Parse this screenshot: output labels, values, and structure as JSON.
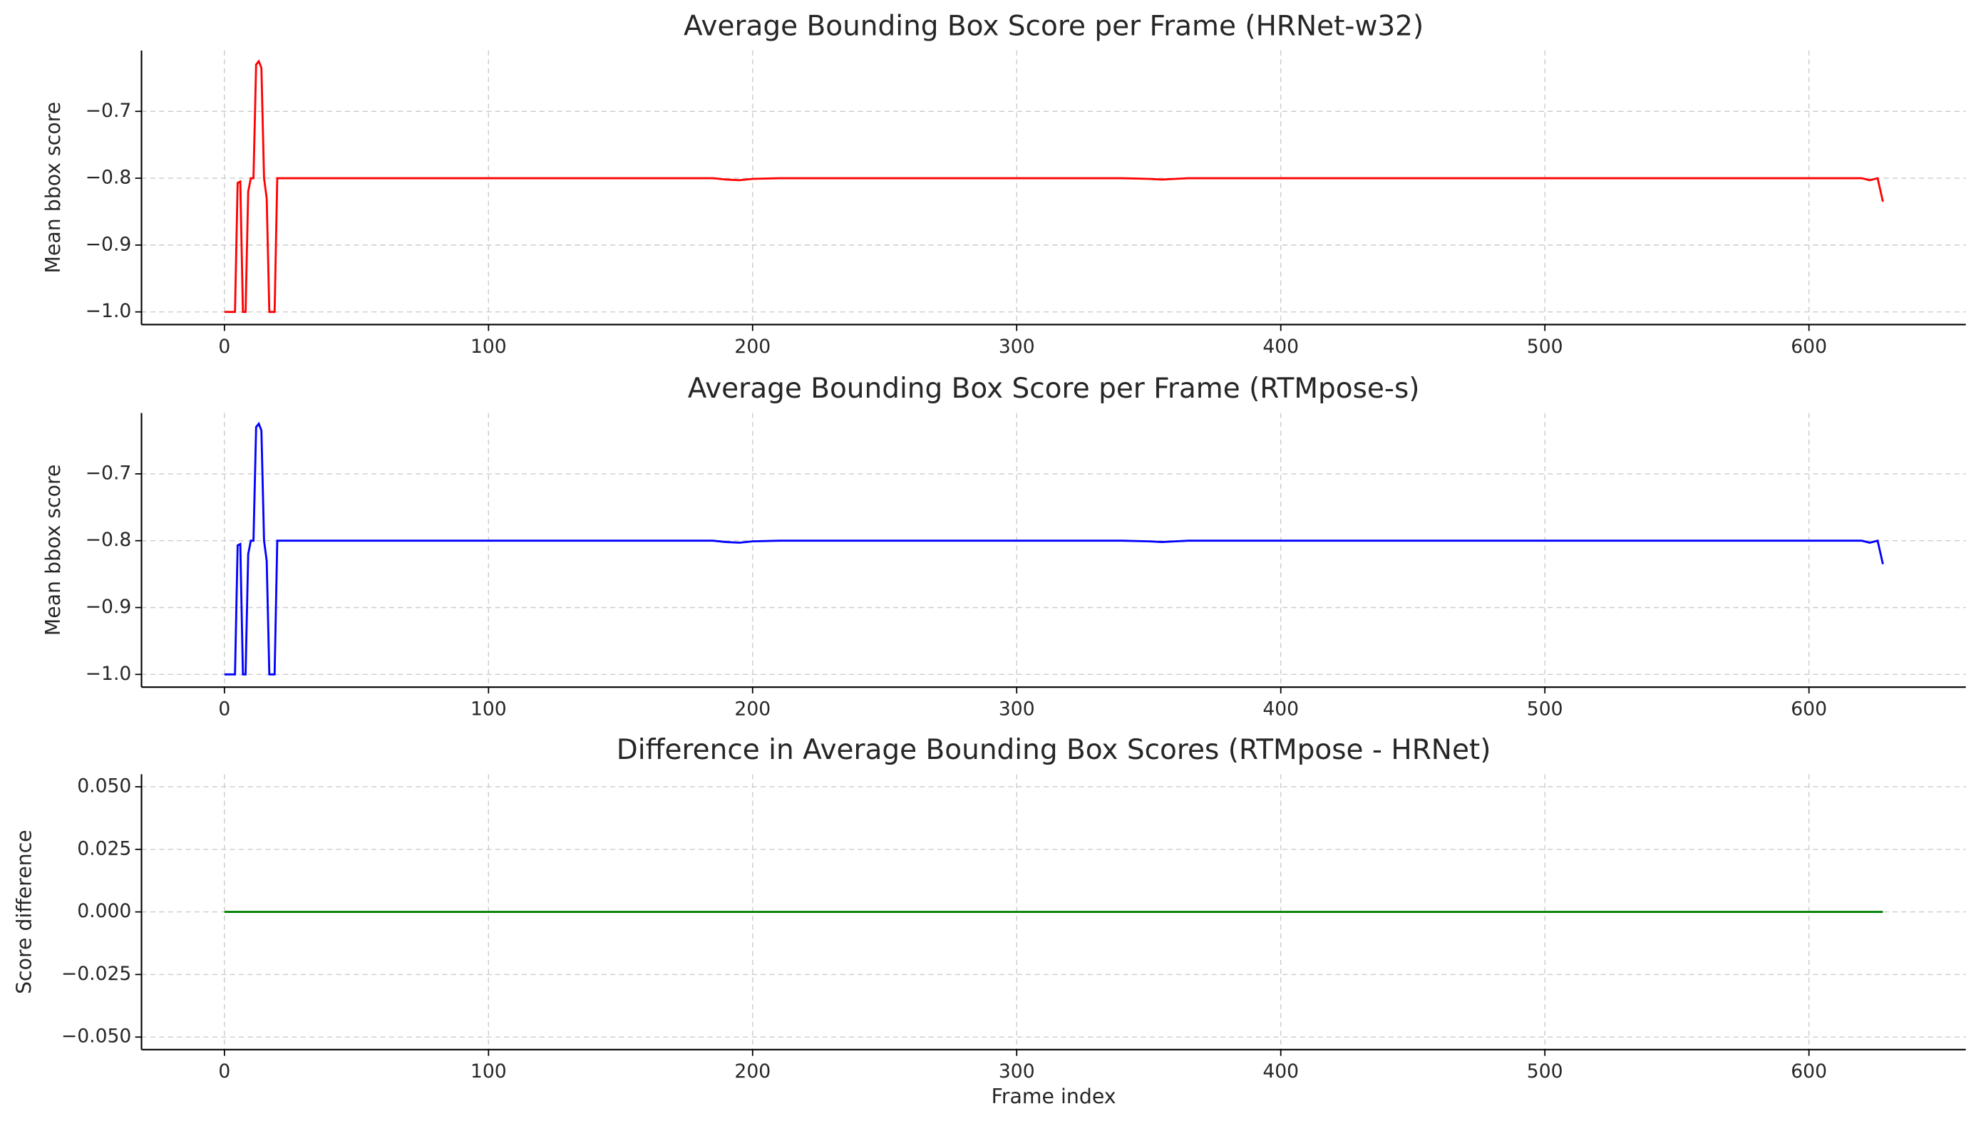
{
  "chart_data": [
    {
      "type": "line",
      "title": "Average Bounding Box Score per Frame (HRNet-w32)",
      "ylabel": "Mean bbox score",
      "x": [
        0,
        4,
        5,
        6,
        7,
        8,
        9,
        10,
        11,
        12,
        13,
        14,
        15,
        16,
        17,
        19,
        20,
        22,
        60,
        185,
        190,
        195,
        200,
        210,
        340,
        350,
        355,
        360,
        365,
        620,
        623,
        626,
        628
      ],
      "series": [
        {
          "color": "#ff0000",
          "values": [
            -1.0,
            -1.0,
            -0.807,
            -0.805,
            -1.0,
            -1.0,
            -0.82,
            -0.8,
            -0.8,
            -0.63,
            -0.625,
            -0.635,
            -0.8,
            -0.83,
            -1.0,
            -1.0,
            -0.8,
            -0.8,
            -0.8,
            -0.8,
            -0.802,
            -0.803,
            -0.801,
            -0.8,
            -0.8,
            -0.801,
            -0.802,
            -0.801,
            -0.8,
            -0.8,
            -0.803,
            -0.8,
            -0.835
          ]
        }
      ],
      "xlim": [
        -31.4,
        659.4
      ],
      "xticks": [
        0,
        100,
        200,
        300,
        400,
        500,
        600
      ],
      "ylim": [
        -1.019,
        -0.609
      ],
      "yticks": [
        {
          "value": -1.0,
          "label": "−1.0"
        },
        {
          "value": -0.9,
          "label": "−0.9"
        },
        {
          "value": -0.8,
          "label": "−0.8"
        },
        {
          "value": -0.7,
          "label": "−0.7"
        }
      ],
      "grid": true
    },
    {
      "type": "line",
      "title": "Average Bounding Box Score per Frame (RTMpose-s)",
      "ylabel": "Mean bbox score",
      "x": [
        0,
        4,
        5,
        6,
        7,
        8,
        9,
        10,
        11,
        12,
        13,
        14,
        15,
        16,
        17,
        19,
        20,
        22,
        60,
        185,
        190,
        195,
        200,
        210,
        340,
        350,
        355,
        360,
        365,
        620,
        623,
        626,
        628
      ],
      "series": [
        {
          "color": "#0000ff",
          "values": [
            -1.0,
            -1.0,
            -0.807,
            -0.805,
            -1.0,
            -1.0,
            -0.82,
            -0.8,
            -0.8,
            -0.63,
            -0.625,
            -0.635,
            -0.8,
            -0.83,
            -1.0,
            -1.0,
            -0.8,
            -0.8,
            -0.8,
            -0.8,
            -0.802,
            -0.803,
            -0.801,
            -0.8,
            -0.8,
            -0.801,
            -0.802,
            -0.801,
            -0.8,
            -0.8,
            -0.803,
            -0.8,
            -0.835
          ]
        }
      ],
      "xlim": [
        -31.4,
        659.4
      ],
      "xticks": [
        0,
        100,
        200,
        300,
        400,
        500,
        600
      ],
      "ylim": [
        -1.019,
        -0.609
      ],
      "yticks": [
        {
          "value": -1.0,
          "label": "−1.0"
        },
        {
          "value": -0.9,
          "label": "−0.9"
        },
        {
          "value": -0.8,
          "label": "−0.8"
        },
        {
          "value": -0.7,
          "label": "−0.7"
        }
      ],
      "grid": true
    },
    {
      "type": "line",
      "title": "Difference in Average Bounding Box Scores (RTMpose - HRNet)",
      "ylabel": "Score difference",
      "xlabel": "Frame index",
      "x": [
        0,
        628
      ],
      "series": [
        {
          "color": "#008000",
          "values": [
            0,
            0
          ]
        }
      ],
      "xlim": [
        -31.4,
        659.4
      ],
      "xticks": [
        0,
        100,
        200,
        300,
        400,
        500,
        600
      ],
      "ylim": [
        -0.055,
        0.055
      ],
      "yticks": [
        {
          "value": -0.05,
          "label": "−0.050"
        },
        {
          "value": -0.025,
          "label": "−0.025"
        },
        {
          "value": 0,
          "label": "0.000"
        },
        {
          "value": 0.025,
          "label": "0.025"
        },
        {
          "value": 0.05,
          "label": "0.050"
        }
      ],
      "grid": true
    }
  ]
}
